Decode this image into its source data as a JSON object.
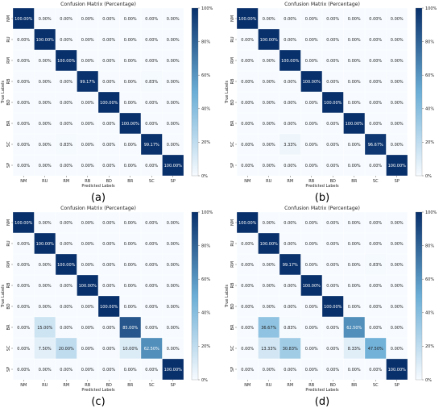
{
  "colors": {
    "low": "#f7fbff",
    "mid": "#6baed6",
    "high": "#08306b",
    "cell_border": "#ffffff"
  },
  "chart_data": [
    {
      "type": "heatmap",
      "panel_label": "(a)",
      "title": "Confusion Matrix (Percentage)",
      "xlabel": "Predicted Labels",
      "ylabel": "True Labels",
      "x_categories": [
        "NM",
        "RU",
        "RM",
        "RB",
        "BD",
        "BR",
        "SC",
        "SP"
      ],
      "y_categories": [
        "NM",
        "RU",
        "RM",
        "RB",
        "BD",
        "BR",
        "SC",
        "SP"
      ],
      "values": [
        [
          100,
          0,
          0,
          0,
          0,
          0,
          0,
          0
        ],
        [
          0,
          100,
          0,
          0,
          0,
          0,
          0,
          0
        ],
        [
          0,
          0,
          100,
          0,
          0,
          0,
          0,
          0
        ],
        [
          0,
          0,
          0,
          99.17,
          0,
          0,
          0.83,
          0
        ],
        [
          0,
          0,
          0,
          0,
          100,
          0,
          0,
          0
        ],
        [
          0,
          0,
          0,
          0,
          0,
          100,
          0,
          0
        ],
        [
          0,
          0,
          0.83,
          0,
          0,
          0,
          99.17,
          0
        ],
        [
          0,
          0,
          0,
          0,
          0,
          0,
          0,
          100
        ]
      ],
      "colorbar_ticks": [
        "0%",
        "20%",
        "40%",
        "60%",
        "80%",
        "100%"
      ],
      "value_range": [
        0,
        100
      ]
    },
    {
      "type": "heatmap",
      "panel_label": "(b)",
      "title": "Confusion Matrix (Percentage)",
      "xlabel": "Predicted Labels",
      "ylabel": "True Labels",
      "x_categories": [
        "NM",
        "RU",
        "RM",
        "RB",
        "BD",
        "BR",
        "SC",
        "SP"
      ],
      "y_categories": [
        "NM",
        "RU",
        "RM",
        "RB",
        "BD",
        "BR",
        "SC",
        "SP"
      ],
      "values": [
        [
          100,
          0,
          0,
          0,
          0,
          0,
          0,
          0
        ],
        [
          0,
          100,
          0,
          0,
          0,
          0,
          0,
          0
        ],
        [
          0,
          0,
          100,
          0,
          0,
          0,
          0,
          0
        ],
        [
          0,
          0,
          0,
          100,
          0,
          0,
          0,
          0
        ],
        [
          0,
          0,
          0,
          0,
          100,
          0,
          0,
          0
        ],
        [
          0,
          0,
          0,
          0,
          0,
          100,
          0,
          0
        ],
        [
          0,
          0,
          3.33,
          0,
          0,
          0,
          96.67,
          0
        ],
        [
          0,
          0,
          0,
          0,
          0,
          0,
          0,
          100
        ]
      ],
      "colorbar_ticks": [
        "0%",
        "20%",
        "40%",
        "60%",
        "80%",
        "100%"
      ],
      "value_range": [
        0,
        100
      ]
    },
    {
      "type": "heatmap",
      "panel_label": "(c)",
      "title": "Confusion Matrix (Percentage)",
      "xlabel": "Predicted Labels",
      "ylabel": "True Labels",
      "x_categories": [
        "NM",
        "RU",
        "RM",
        "RB",
        "BD",
        "BR",
        "SC",
        "SP"
      ],
      "y_categories": [
        "NM",
        "RU",
        "RM",
        "RB",
        "BD",
        "BR",
        "SC",
        "SP"
      ],
      "values": [
        [
          100,
          0,
          0,
          0,
          0,
          0,
          0,
          0
        ],
        [
          0,
          100,
          0,
          0,
          0,
          0,
          0,
          0
        ],
        [
          0,
          0,
          100,
          0,
          0,
          0,
          0,
          0
        ],
        [
          0,
          0,
          0,
          100,
          0,
          0,
          0,
          0
        ],
        [
          0,
          0,
          0,
          0,
          100,
          0,
          0,
          0
        ],
        [
          0,
          15,
          0,
          0,
          0,
          85,
          0,
          0
        ],
        [
          0,
          7.5,
          20,
          0,
          0,
          10,
          62.5,
          0
        ],
        [
          0,
          0,
          0,
          0,
          0,
          0,
          0,
          100
        ]
      ],
      "colorbar_ticks": [
        "0%",
        "20%",
        "40%",
        "60%",
        "80%",
        "100%"
      ],
      "value_range": [
        0,
        100
      ]
    },
    {
      "type": "heatmap",
      "panel_label": "(d)",
      "title": "Confusion Matrix (Percentage)",
      "xlabel": "Predicted Labels",
      "ylabel": "True Labels",
      "x_categories": [
        "NM",
        "RU",
        "RM",
        "RB",
        "BD",
        "BR",
        "SC",
        "SP"
      ],
      "y_categories": [
        "NM",
        "RU",
        "RM",
        "RB",
        "BD",
        "BR",
        "SC",
        "SP"
      ],
      "values": [
        [
          100,
          0,
          0,
          0,
          0,
          0,
          0,
          0
        ],
        [
          0,
          100,
          0,
          0,
          0,
          0,
          0,
          0
        ],
        [
          0,
          0,
          99.17,
          0,
          0,
          0,
          0.83,
          0
        ],
        [
          0,
          0,
          0,
          100,
          0,
          0,
          0,
          0
        ],
        [
          0,
          0,
          0,
          0,
          100,
          0,
          0,
          0
        ],
        [
          0,
          36.67,
          0.83,
          0,
          0,
          62.5,
          0,
          0
        ],
        [
          0,
          13.33,
          30.83,
          0,
          0,
          8.33,
          47.5,
          0
        ],
        [
          0,
          0,
          0,
          0,
          0,
          0,
          0,
          100
        ]
      ],
      "colorbar_ticks": [
        "0%",
        "20%",
        "40%",
        "60%",
        "80%",
        "100%"
      ],
      "value_range": [
        0,
        100
      ]
    }
  ]
}
